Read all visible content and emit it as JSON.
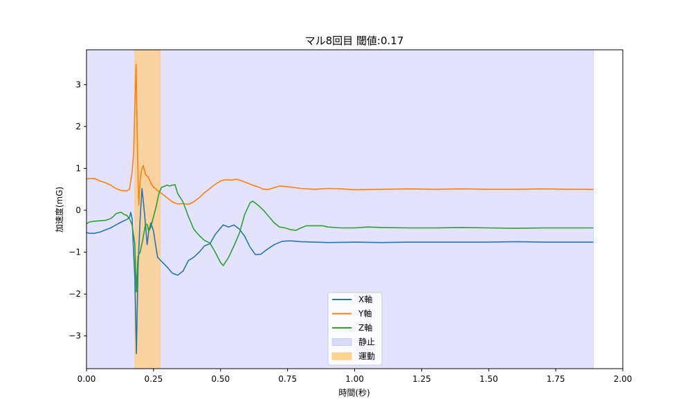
{
  "chart_data": {
    "type": "line",
    "title": "マル8回目 閾値:0.17",
    "xlabel": "時間(秒)",
    "ylabel": "加速度(mG)",
    "xlim": [
      0,
      2.0
    ],
    "ylim": [
      -3.78,
      3.83
    ],
    "x_ticks": [
      0,
      0.25,
      0.5,
      0.75,
      1.0,
      1.25,
      1.5,
      1.75,
      2.0
    ],
    "x_tick_labels": [
      "0.00",
      "0.25",
      "0.50",
      "0.75",
      "1.00",
      "1.25",
      "1.50",
      "1.75",
      "2.00"
    ],
    "y_ticks": [
      -3,
      -2,
      -1,
      0,
      1,
      2,
      3
    ],
    "y_tick_labels": [
      "−3",
      "−2",
      "−1",
      "0",
      "1",
      "2",
      "3"
    ],
    "legend_position": "bottom-center",
    "spans": [
      {
        "name": "静止",
        "start": 0.0,
        "end": 1.89,
        "color": "#ccccff"
      },
      {
        "name": "運動",
        "start": 0.18,
        "end": 0.275,
        "color": "#ffcc80"
      }
    ],
    "series": [
      {
        "name": "X軸",
        "color": "#1f77b4",
        "points": [
          [
            0.0,
            -0.53
          ],
          [
            0.01,
            -0.55
          ],
          [
            0.03,
            -0.55
          ],
          [
            0.05,
            -0.52
          ],
          [
            0.07,
            -0.47
          ],
          [
            0.09,
            -0.42
          ],
          [
            0.11,
            -0.35
          ],
          [
            0.13,
            -0.28
          ],
          [
            0.15,
            -0.22
          ],
          [
            0.16,
            -0.18
          ],
          [
            0.165,
            -0.05
          ],
          [
            0.17,
            -0.2
          ],
          [
            0.175,
            -0.9
          ],
          [
            0.18,
            -1.6
          ],
          [
            0.186,
            -3.42
          ],
          [
            0.192,
            -1.4
          ],
          [
            0.2,
            -0.2
          ],
          [
            0.207,
            0.52
          ],
          [
            0.213,
            0.15
          ],
          [
            0.22,
            -0.35
          ],
          [
            0.226,
            -0.82
          ],
          [
            0.232,
            -0.5
          ],
          [
            0.24,
            -0.3
          ],
          [
            0.25,
            -0.5
          ],
          [
            0.257,
            -0.8
          ],
          [
            0.265,
            -1.12
          ],
          [
            0.28,
            -1.22
          ],
          [
            0.3,
            -1.35
          ],
          [
            0.32,
            -1.5
          ],
          [
            0.34,
            -1.55
          ],
          [
            0.36,
            -1.45
          ],
          [
            0.38,
            -1.2
          ],
          [
            0.4,
            -1.12
          ],
          [
            0.42,
            -1.0
          ],
          [
            0.44,
            -0.85
          ],
          [
            0.46,
            -0.8
          ],
          [
            0.48,
            -0.58
          ],
          [
            0.5,
            -0.42
          ],
          [
            0.51,
            -0.35
          ],
          [
            0.53,
            -0.4
          ],
          [
            0.55,
            -0.35
          ],
          [
            0.57,
            -0.45
          ],
          [
            0.59,
            -0.62
          ],
          [
            0.61,
            -0.88
          ],
          [
            0.63,
            -1.06
          ],
          [
            0.65,
            -1.05
          ],
          [
            0.67,
            -0.95
          ],
          [
            0.7,
            -0.82
          ],
          [
            0.73,
            -0.74
          ],
          [
            0.76,
            -0.73
          ],
          [
            0.8,
            -0.75
          ],
          [
            0.9,
            -0.77
          ],
          [
            1.0,
            -0.76
          ],
          [
            1.1,
            -0.77
          ],
          [
            1.2,
            -0.76
          ],
          [
            1.3,
            -0.76
          ],
          [
            1.4,
            -0.76
          ],
          [
            1.5,
            -0.76
          ],
          [
            1.6,
            -0.75
          ],
          [
            1.7,
            -0.76
          ],
          [
            1.8,
            -0.76
          ],
          [
            1.89,
            -0.76
          ]
        ]
      },
      {
        "name": "Y軸",
        "color": "#ff7f0e",
        "points": [
          [
            0.0,
            0.75
          ],
          [
            0.03,
            0.76
          ],
          [
            0.05,
            0.7
          ],
          [
            0.07,
            0.66
          ],
          [
            0.09,
            0.6
          ],
          [
            0.11,
            0.52
          ],
          [
            0.13,
            0.47
          ],
          [
            0.15,
            0.46
          ],
          [
            0.16,
            0.5
          ],
          [
            0.17,
            0.9
          ],
          [
            0.176,
            1.4
          ],
          [
            0.18,
            2.5
          ],
          [
            0.185,
            3.48
          ],
          [
            0.19,
            1.5
          ],
          [
            0.195,
            0.12
          ],
          [
            0.2,
            0.7
          ],
          [
            0.205,
            0.95
          ],
          [
            0.212,
            1.07
          ],
          [
            0.22,
            0.85
          ],
          [
            0.23,
            0.8
          ],
          [
            0.24,
            0.65
          ],
          [
            0.25,
            0.55
          ],
          [
            0.27,
            0.45
          ],
          [
            0.3,
            0.3
          ],
          [
            0.32,
            0.2
          ],
          [
            0.34,
            0.15
          ],
          [
            0.36,
            0.16
          ],
          [
            0.38,
            0.14
          ],
          [
            0.4,
            0.2
          ],
          [
            0.42,
            0.3
          ],
          [
            0.44,
            0.42
          ],
          [
            0.46,
            0.52
          ],
          [
            0.48,
            0.62
          ],
          [
            0.5,
            0.7
          ],
          [
            0.52,
            0.73
          ],
          [
            0.54,
            0.72
          ],
          [
            0.56,
            0.74
          ],
          [
            0.58,
            0.7
          ],
          [
            0.6,
            0.65
          ],
          [
            0.62,
            0.6
          ],
          [
            0.64,
            0.56
          ],
          [
            0.66,
            0.5
          ],
          [
            0.68,
            0.5
          ],
          [
            0.7,
            0.54
          ],
          [
            0.72,
            0.58
          ],
          [
            0.75,
            0.56
          ],
          [
            0.8,
            0.52
          ],
          [
            0.85,
            0.5
          ],
          [
            0.9,
            0.52
          ],
          [
            0.95,
            0.51
          ],
          [
            1.0,
            0.49
          ],
          [
            1.1,
            0.5
          ],
          [
            1.2,
            0.51
          ],
          [
            1.3,
            0.5
          ],
          [
            1.4,
            0.51
          ],
          [
            1.5,
            0.5
          ],
          [
            1.6,
            0.5
          ],
          [
            1.7,
            0.51
          ],
          [
            1.8,
            0.5
          ],
          [
            1.89,
            0.5
          ]
        ]
      },
      {
        "name": "Z軸",
        "color": "#2ca02c",
        "points": [
          [
            0.0,
            -0.32
          ],
          [
            0.01,
            -0.28
          ],
          [
            0.03,
            -0.26
          ],
          [
            0.05,
            -0.25
          ],
          [
            0.07,
            -0.24
          ],
          [
            0.09,
            -0.2
          ],
          [
            0.1,
            -0.15
          ],
          [
            0.11,
            -0.08
          ],
          [
            0.12,
            -0.06
          ],
          [
            0.13,
            -0.05
          ],
          [
            0.14,
            -0.1
          ],
          [
            0.15,
            -0.12
          ],
          [
            0.16,
            -0.2
          ],
          [
            0.17,
            -0.35
          ],
          [
            0.18,
            -0.8
          ],
          [
            0.186,
            -1.95
          ],
          [
            0.192,
            -1.1
          ],
          [
            0.2,
            -1.0
          ],
          [
            0.21,
            -0.7
          ],
          [
            0.22,
            -0.32
          ],
          [
            0.227,
            -0.35
          ],
          [
            0.232,
            -0.5
          ],
          [
            0.24,
            -0.4
          ],
          [
            0.25,
            -0.15
          ],
          [
            0.26,
            0.1
          ],
          [
            0.27,
            0.4
          ],
          [
            0.28,
            0.55
          ],
          [
            0.29,
            0.57
          ],
          [
            0.3,
            0.6
          ],
          [
            0.31,
            0.58
          ],
          [
            0.32,
            0.6
          ],
          [
            0.33,
            0.61
          ],
          [
            0.34,
            0.4
          ],
          [
            0.36,
            0.2
          ],
          [
            0.38,
            -0.15
          ],
          [
            0.4,
            -0.45
          ],
          [
            0.42,
            -0.6
          ],
          [
            0.44,
            -0.72
          ],
          [
            0.46,
            -0.78
          ],
          [
            0.48,
            -1.0
          ],
          [
            0.5,
            -1.25
          ],
          [
            0.51,
            -1.32
          ],
          [
            0.53,
            -1.12
          ],
          [
            0.55,
            -0.85
          ],
          [
            0.57,
            -0.55
          ],
          [
            0.59,
            -0.1
          ],
          [
            0.61,
            0.18
          ],
          [
            0.62,
            0.22
          ],
          [
            0.64,
            0.12
          ],
          [
            0.66,
            0.0
          ],
          [
            0.68,
            -0.15
          ],
          [
            0.7,
            -0.3
          ],
          [
            0.72,
            -0.4
          ],
          [
            0.74,
            -0.42
          ],
          [
            0.76,
            -0.46
          ],
          [
            0.78,
            -0.48
          ],
          [
            0.8,
            -0.42
          ],
          [
            0.82,
            -0.37
          ],
          [
            0.85,
            -0.37
          ],
          [
            0.88,
            -0.37
          ],
          [
            0.9,
            -0.4
          ],
          [
            0.95,
            -0.42
          ],
          [
            1.0,
            -0.42
          ],
          [
            1.05,
            -0.4
          ],
          [
            1.1,
            -0.41
          ],
          [
            1.2,
            -0.42
          ],
          [
            1.3,
            -0.42
          ],
          [
            1.4,
            -0.41
          ],
          [
            1.5,
            -0.42
          ],
          [
            1.6,
            -0.43
          ],
          [
            1.7,
            -0.42
          ],
          [
            1.8,
            -0.42
          ],
          [
            1.89,
            -0.42
          ]
        ]
      }
    ]
  }
}
